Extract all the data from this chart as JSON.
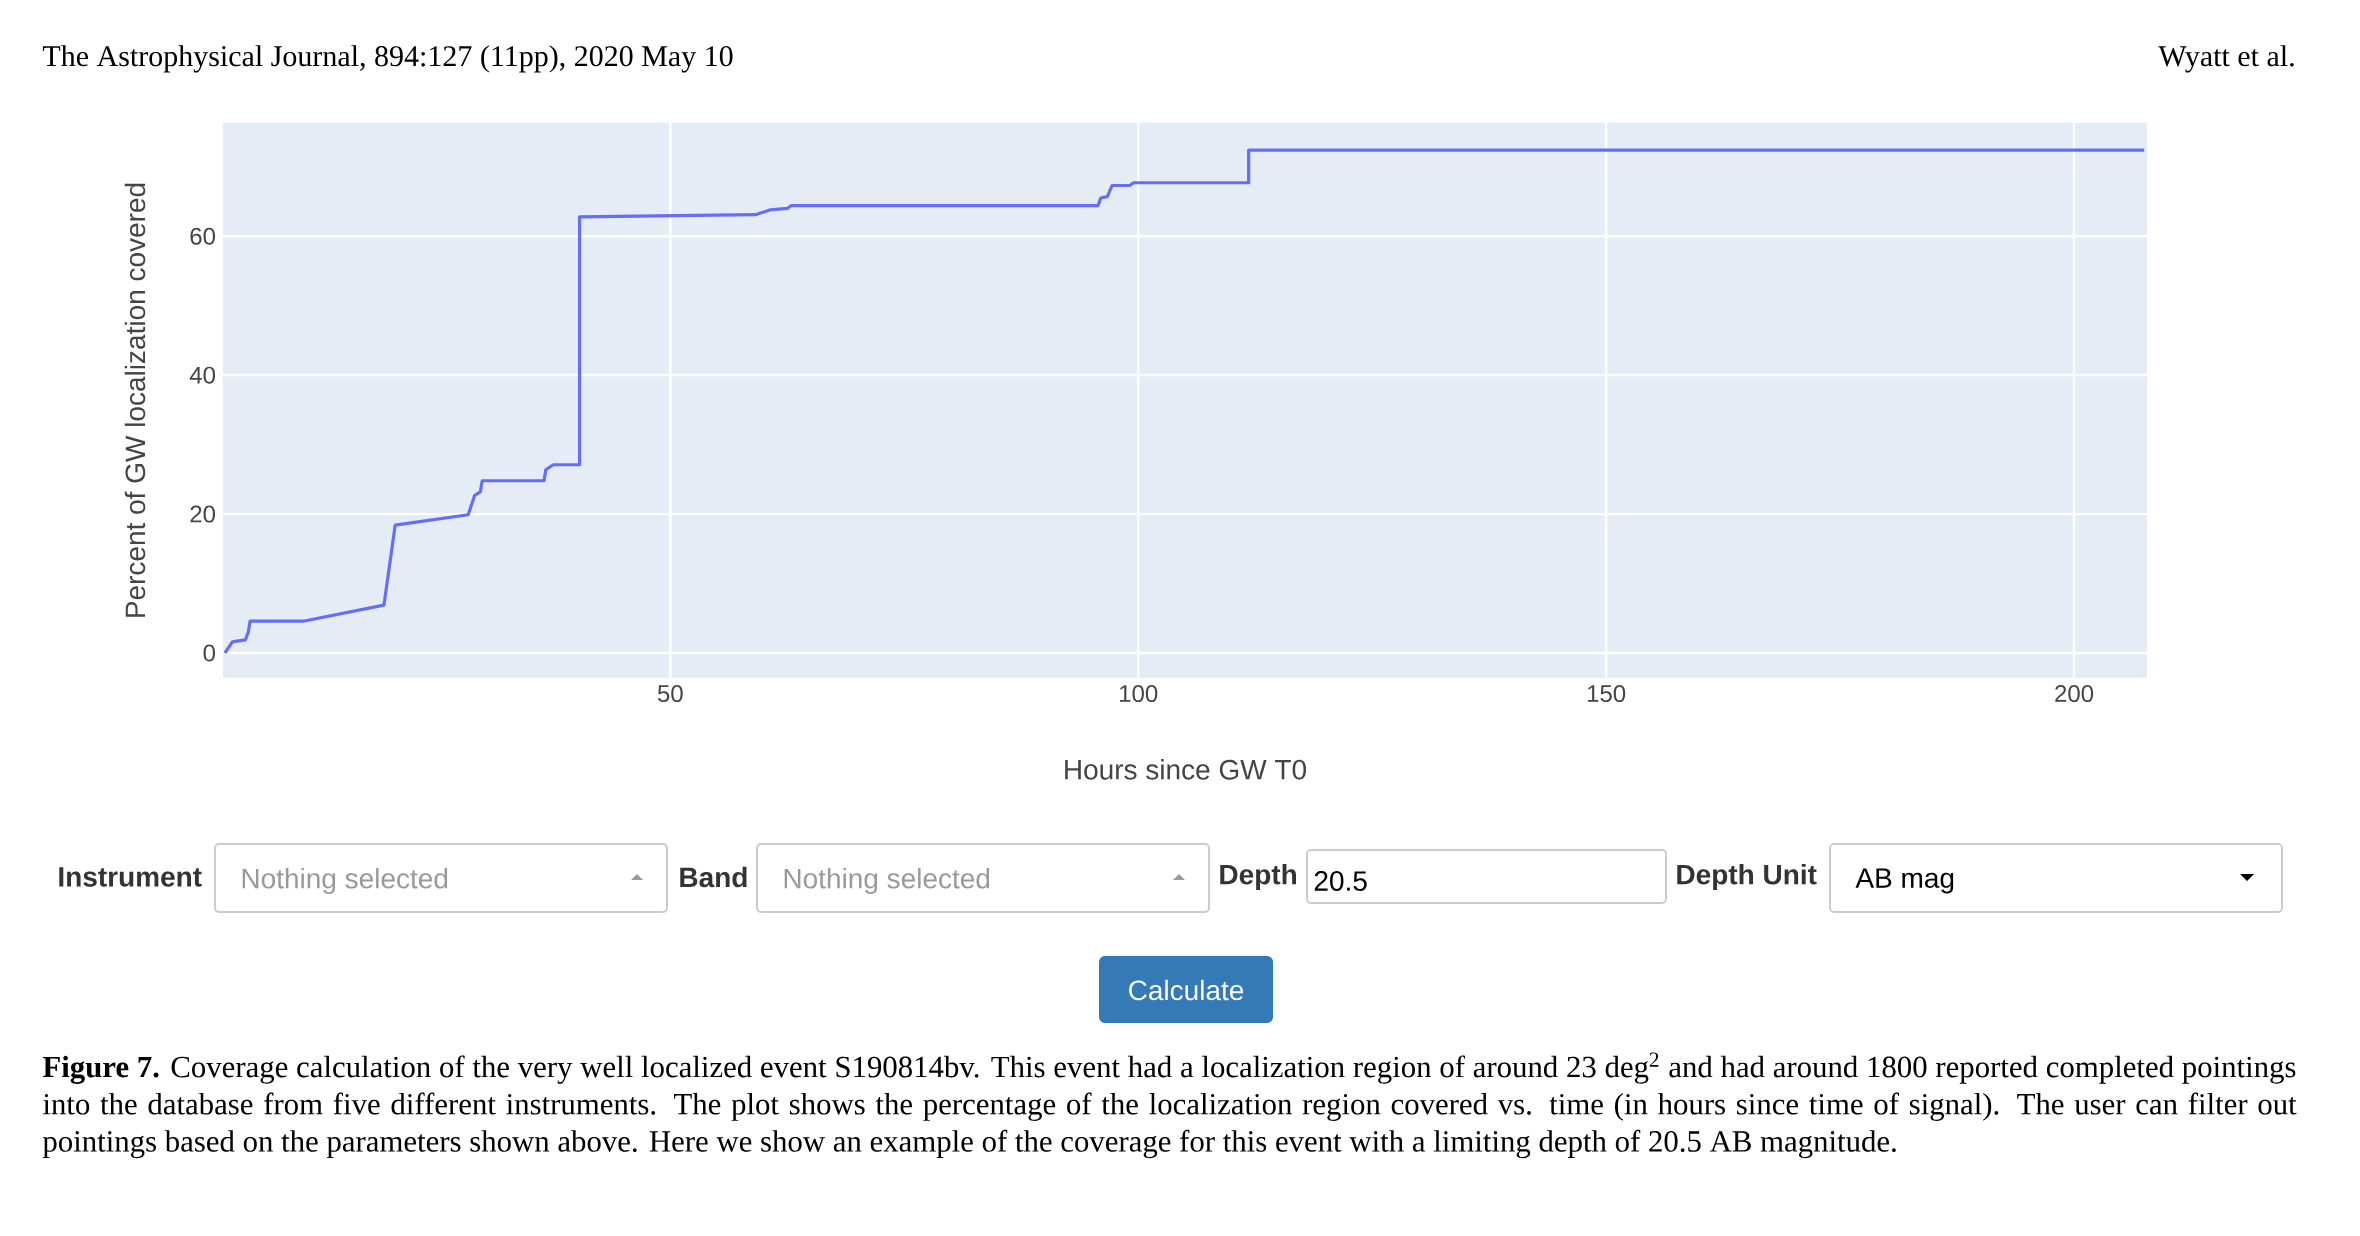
{
  "chart_data": {
    "type": "line",
    "xlabel": "Hours since GW T0",
    "ylabel": "Percent of GW localization covered",
    "series": [
      {
        "color": "#636efa",
        "x": [
          2.4,
          3.2,
          4.6,
          4.9,
          5.1,
          10.9,
          19.4,
          20.6,
          28.4,
          29.1,
          29.7,
          29.9,
          36.5,
          36.7,
          37.5,
          40.3,
          40.3,
          59.1,
          60.7,
          62.5,
          62.9,
          95.7,
          96.0,
          96.7,
          97.2,
          99.1,
          99.5,
          111.8,
          111.8,
          207.5
        ],
        "values": [
          0,
          1.6,
          1.9,
          3.0,
          4.6,
          4.6,
          6.9,
          18.4,
          19.9,
          22.7,
          23.2,
          24.8,
          24.8,
          26.4,
          27.1,
          27.1,
          62.8,
          63.1,
          63.8,
          64.0,
          64.4,
          64.4,
          65.5,
          65.7,
          67.3,
          67.3,
          67.7,
          67.7,
          72.4,
          72.4
        ]
      }
    ],
    "xlim": [
      2.2,
      207.8
    ],
    "ylim": [
      -3.6,
      76.3
    ],
    "xticks": [
      50,
      100,
      150,
      200
    ],
    "yticks": [
      0,
      20,
      40,
      60
    ],
    "grid": true,
    "annotations": [
      "The Astrophysical Journal, 894:127 (11pp), 2020 May 10",
      "Wyatt et al.",
      "Instrument",
      "Nothing selected",
      "Band",
      "Nothing selected",
      "Depth",
      "20.5",
      "Depth Unit",
      "AB mag",
      "Calculate",
      "**Figure 7.** Coverage calculation of the very well localized event S190814bv. This event had a localization region of around 23 deg$^{2}$ and had around 1800 reported completed pointings into the database from five different instruments. The plot shows the percentage of the localization region covered vs. time (in hours since time of signal). The user can filter out pointings based on the parameters shown above. Here we show an example of the coverage for this event with a limiting depth of 20.5 AB magnitude."
    ]
  }
}
